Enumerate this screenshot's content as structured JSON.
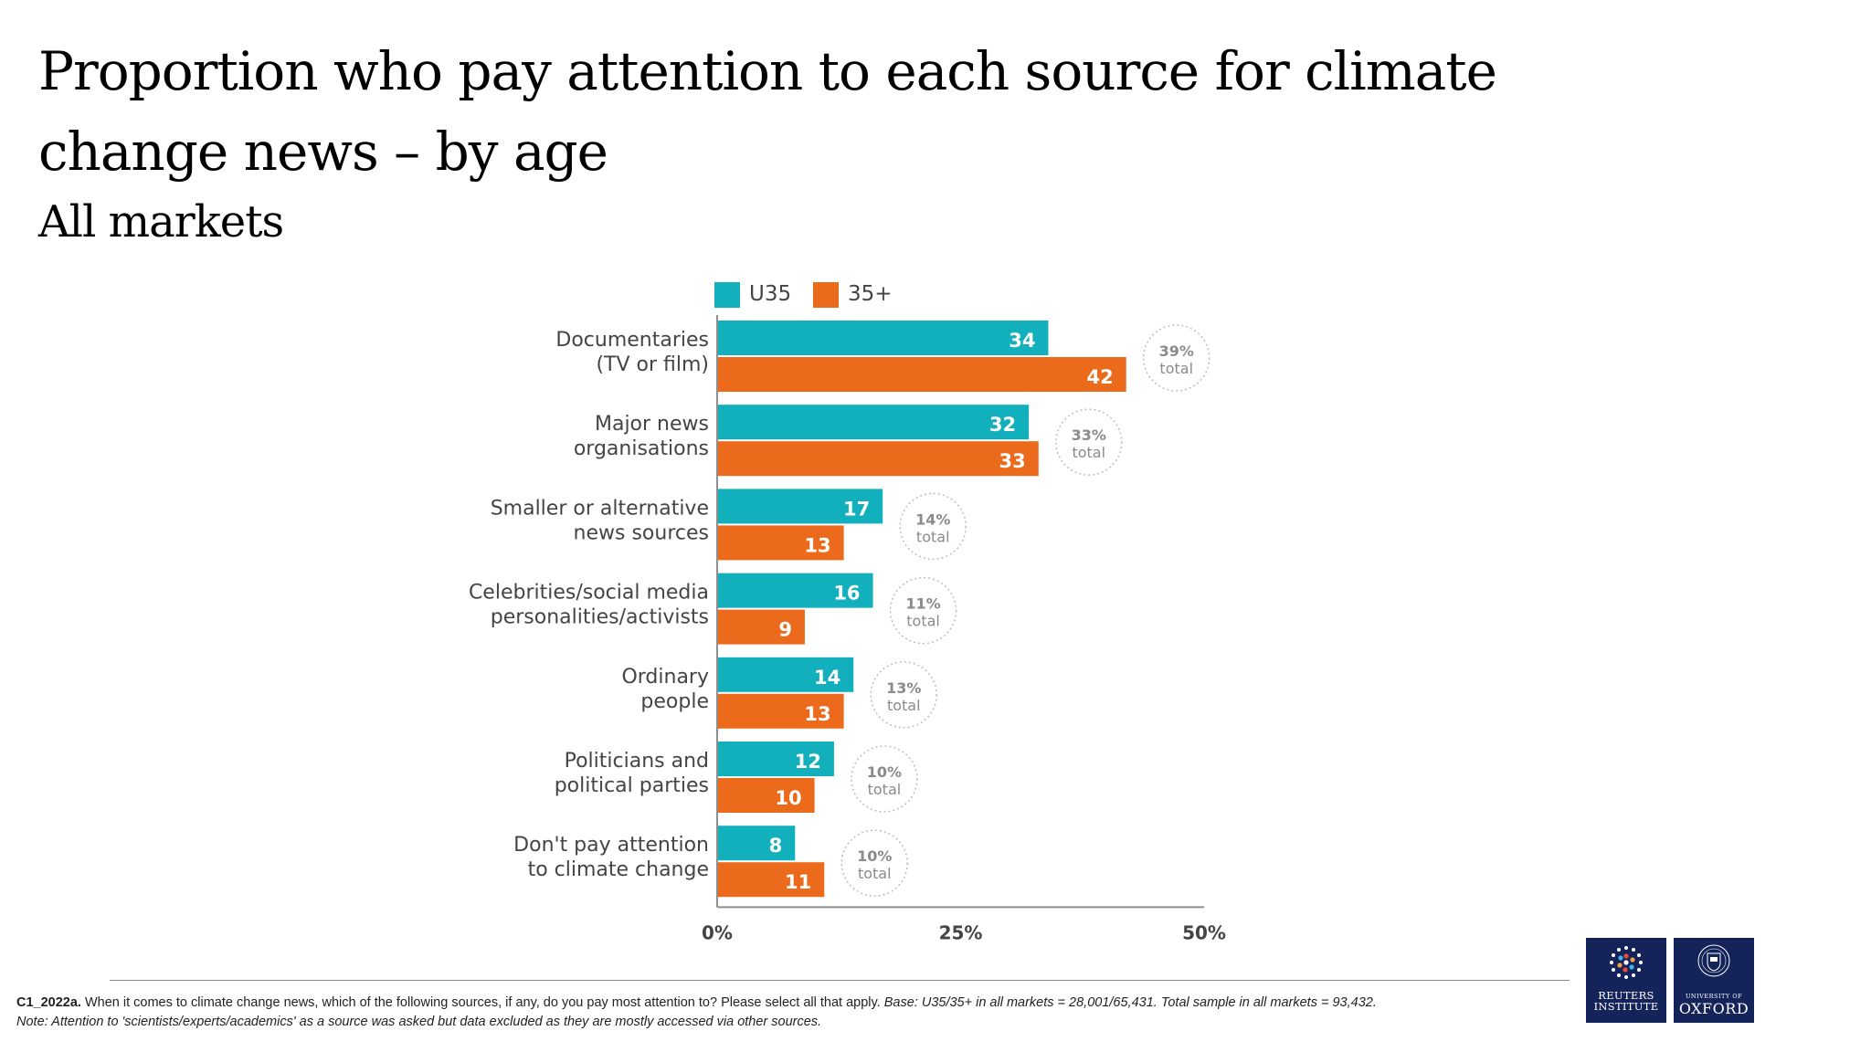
{
  "title": "Proportion who pay attention to each source for climate change news – by age",
  "subtitle": "All markets",
  "colors": {
    "u35": "#12b0bd",
    "o35": "#ec6a1c",
    "axis": "#8e8e8e",
    "text": "#444444",
    "ring": "#bdbdbd"
  },
  "chart_data": {
    "type": "bar",
    "orientation": "horizontal",
    "categories": [
      [
        "Documentaries",
        "(TV or film)"
      ],
      [
        "Major news",
        "organisations"
      ],
      [
        "Smaller or alternative",
        "news sources"
      ],
      [
        "Celebrities/social media",
        "personalities/activists"
      ],
      [
        "Ordinary",
        "people"
      ],
      [
        "Politicians and",
        "political parties"
      ],
      [
        "Don't pay attention",
        "to climate change"
      ]
    ],
    "series": [
      {
        "name": "U35",
        "values": [
          34,
          32,
          17,
          16,
          14,
          12,
          8
        ]
      },
      {
        "name": "35+",
        "values": [
          42,
          33,
          13,
          9,
          13,
          10,
          11
        ]
      }
    ],
    "totals": [
      "39%",
      "33%",
      "14%",
      "11%",
      "13%",
      "10%",
      "10%"
    ],
    "total_word": "total",
    "xlim": [
      0,
      50
    ],
    "x_ticks": [
      "0%",
      "25%",
      "50%"
    ],
    "legend_position": "top",
    "grid": false
  },
  "footer": {
    "code": "C1_2022a.",
    "question": " When it comes to climate change news, which of the following sources, if any, do you pay most attention to? Please select all that apply. ",
    "base": "Base: U35/35+ in all markets = 28,001/65,431. Total sample in all markets = 93,432.",
    "note": "Note: Attention to 'scientists/experts/academics' as a source was asked but data excluded as they are mostly accessed via other sources."
  },
  "logos": {
    "reuters": {
      "line1": "REUTERS",
      "line2": "INSTITUTE"
    },
    "oxford": {
      "small": "UNIVERSITY OF",
      "big": "OXFORD"
    }
  }
}
